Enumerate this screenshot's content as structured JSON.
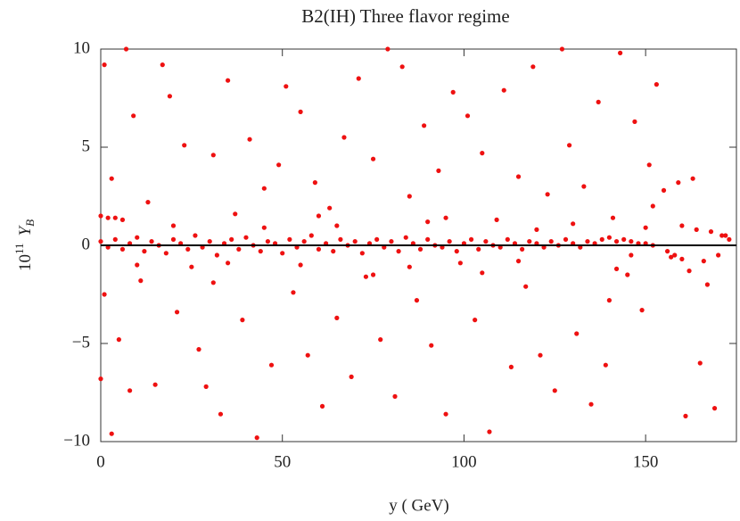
{
  "chart_data": {
    "type": "scatter",
    "title": "B2(IH) Three flavor regime",
    "xlabel": "y ( GeV)",
    "ylabel": {
      "base": "10",
      "exponent": "11",
      "symbol": "Y",
      "subscript": "B"
    },
    "xlim": [
      0,
      175
    ],
    "ylim": [
      -10,
      10
    ],
    "xticks": [
      0,
      50,
      100,
      150
    ],
    "yticks": [
      {
        "value": -10,
        "label": "−10"
      },
      {
        "value": -5,
        "label": "−5"
      },
      0,
      5,
      10
    ],
    "zero_line": true,
    "color": "#ee1111",
    "x": [
      0,
      2,
      4,
      6,
      8,
      10,
      12,
      14,
      16,
      18,
      20,
      22,
      24,
      26,
      28,
      30,
      32,
      34,
      36,
      38,
      40,
      42,
      44,
      46,
      48,
      50,
      52,
      54,
      56,
      58,
      60,
      62,
      64,
      66,
      68,
      70,
      72,
      74,
      76,
      78,
      80,
      82,
      84,
      86,
      88,
      90,
      92,
      94,
      96,
      98,
      100,
      102,
      104,
      106,
      108,
      110,
      112,
      114,
      116,
      118,
      120,
      122,
      124,
      126,
      128,
      130,
      132,
      134,
      136,
      138,
      140,
      142,
      144,
      146,
      148,
      150,
      152,
      0,
      2,
      4,
      6,
      1,
      3,
      5,
      0,
      1,
      3,
      7,
      8,
      9,
      11,
      13,
      15,
      17,
      19,
      21,
      23,
      25,
      27,
      29,
      31,
      33,
      35,
      37,
      39,
      41,
      43,
      45,
      47,
      49,
      51,
      53,
      55,
      57,
      59,
      61,
      63,
      65,
      67,
      69,
      71,
      73,
      75,
      77,
      79,
      81,
      83,
      85,
      87,
      89,
      91,
      93,
      95,
      97,
      99,
      101,
      103,
      105,
      107,
      109,
      111,
      113,
      115,
      117,
      119,
      121,
      123,
      125,
      127,
      129,
      131,
      133,
      135,
      137,
      139,
      141,
      143,
      145,
      147,
      149,
      151,
      153,
      155,
      157,
      159,
      161,
      163,
      165,
      167,
      169,
      171,
      173,
      160,
      164,
      168,
      172,
      140,
      142,
      146,
      150,
      152,
      156,
      158,
      160,
      162,
      166,
      170,
      31,
      45,
      60,
      75,
      90,
      105,
      120,
      10,
      20,
      35,
      55,
      65,
      85,
      95,
      115,
      130
    ],
    "values": [
      0.2,
      -0.1,
      0.3,
      -0.2,
      0.1,
      0.4,
      -0.3,
      0.2,
      0,
      -0.4,
      0.3,
      0.1,
      -0.2,
      0.5,
      -0.1,
      0.2,
      -0.5,
      0.1,
      0.3,
      -0.2,
      0.4,
      0,
      -0.3,
      0.2,
      0.1,
      -0.4,
      0.3,
      -0.1,
      0.2,
      0.5,
      -0.2,
      0.1,
      -0.3,
      0.3,
      0,
      0.2,
      -0.4,
      0.1,
      0.3,
      -0.1,
      0.2,
      -0.3,
      0.4,
      0.1,
      -0.2,
      0.3,
      0,
      -0.1,
      0.2,
      -0.3,
      0.1,
      0.3,
      -0.2,
      0.2,
      0,
      -0.1,
      0.3,
      0.1,
      -0.2,
      0.2,
      0.1,
      -0.1,
      0.2,
      0,
      0.3,
      0.1,
      -0.1,
      0.2,
      0.1,
      0.3,
      0.4,
      0.2,
      0.3,
      0.2,
      0.1,
      0.1,
      0,
      1.5,
      1.4,
      1.4,
      1.3,
      9.2,
      3.4,
      -4.8,
      -6.8,
      -2.5,
      -9.6,
      10,
      -7.4,
      6.6,
      -1.8,
      2.2,
      -7.1,
      9.2,
      7.6,
      -3.4,
      5.1,
      -1.1,
      -5.3,
      -7.2,
      4.6,
      -8.6,
      8.4,
      1.6,
      -3.8,
      5.4,
      -9.8,
      2.9,
      -6.1,
      4.1,
      8.1,
      -2.4,
      6.8,
      -5.6,
      3.2,
      -8.2,
      1.9,
      -3.7,
      5.5,
      -6.7,
      8.5,
      -1.6,
      4.4,
      -4.8,
      10,
      -7.7,
      9.1,
      2.5,
      -2.8,
      6.1,
      -5.1,
      3.8,
      -8.6,
      7.8,
      -0.9,
      6.6,
      -3.8,
      4.7,
      -9.5,
      1.3,
      7.9,
      -6.2,
      3.5,
      -2.1,
      9.1,
      -5.6,
      2.6,
      -7.4,
      10,
      5.1,
      -4.5,
      3,
      -8.1,
      7.3,
      -6.1,
      1.4,
      9.8,
      -1.5,
      6.3,
      -3.3,
      4.1,
      8.2,
      2.8,
      -0.6,
      3.2,
      -8.7,
      3.4,
      -6,
      -2,
      -8.3,
      0.5,
      0.3,
      1,
      0.8,
      0.7,
      0.5,
      -2.8,
      -1.2,
      -0.5,
      0.9,
      2,
      -0.3,
      -0.5,
      -0.7,
      -1.3,
      -0.8,
      -0.5,
      -1.9,
      0.9,
      1.5,
      -1.5,
      1.2,
      -1.4,
      0.8,
      -1,
      1,
      -0.9,
      -1,
      1,
      -1.1,
      1.4,
      -0.8,
      1.1
    ]
  }
}
